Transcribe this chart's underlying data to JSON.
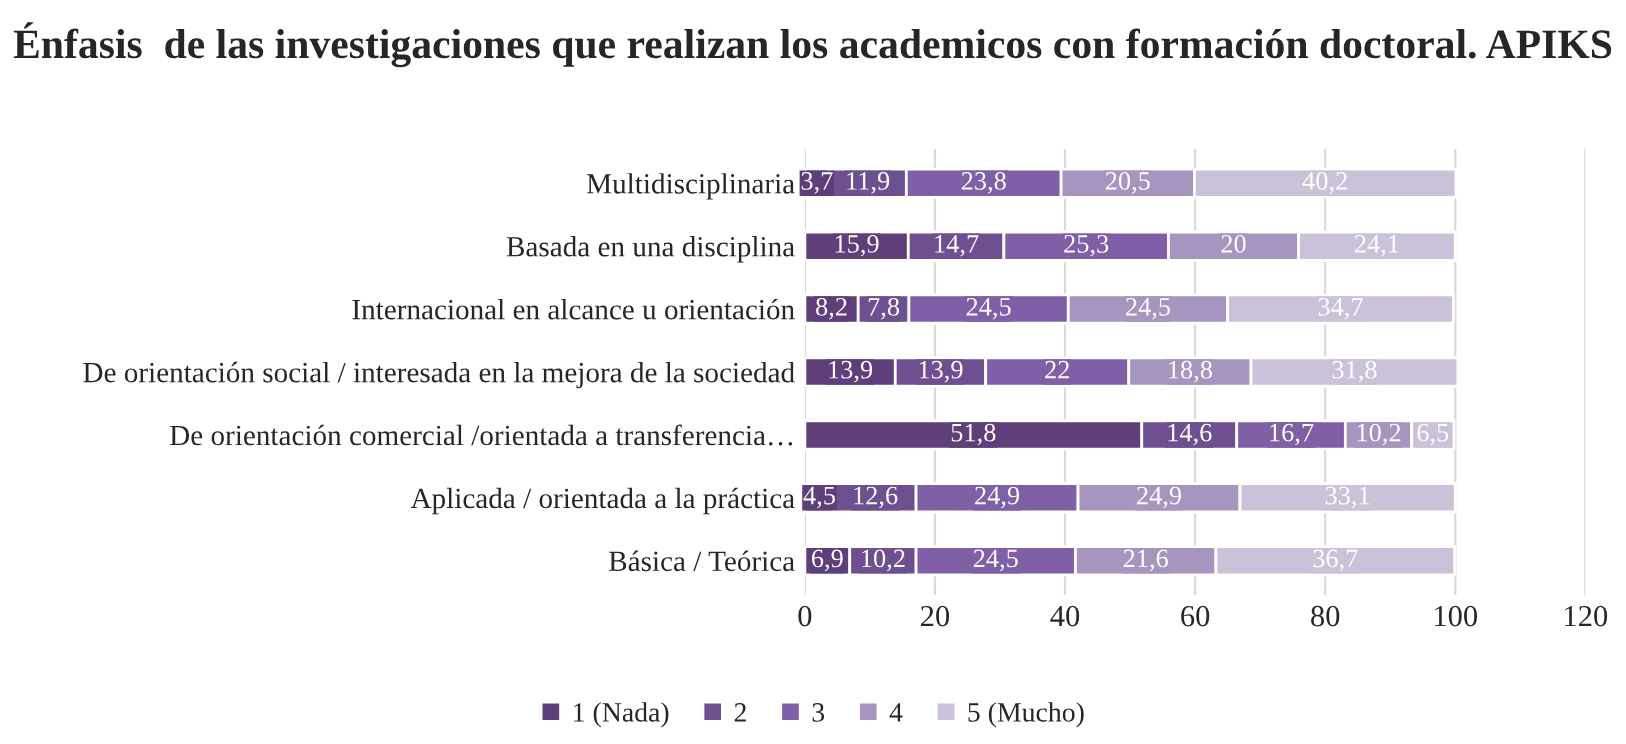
{
  "chart_data": {
    "type": "bar",
    "orientation": "horizontal",
    "stacked": true,
    "title": "Énfasis  de las investigaciones que realizan los academicos con formación doctoral. APIKS",
    "categories": [
      "Multidisciplinaria",
      "Basada en una disciplina",
      "Internacional en alcance u orientación",
      "De orientación social / interesada en la mejora de la sociedad",
      "De orientación comercial /orientada a transferencia…",
      "Aplicada / orientada a la práctica",
      "Básica / Teórica"
    ],
    "series": [
      {
        "name": "1 (Nada)",
        "color": "#5e3f7a",
        "values": [
          3.7,
          15.9,
          8.2,
          13.9,
          51.8,
          4.5,
          6.9
        ],
        "value_labels": [
          "3,7",
          "15,9",
          "8,2",
          "13,9",
          "51,8",
          "4,5",
          "6,9"
        ]
      },
      {
        "name": "2",
        "color": "#6e5090",
        "values": [
          11.9,
          14.7,
          7.8,
          13.9,
          14.6,
          12.6,
          10.2
        ],
        "value_labels": [
          "11,9",
          "14,7",
          "7,8",
          "13,9",
          "14,6",
          "12,6",
          "10,2"
        ]
      },
      {
        "name": "3",
        "color": "#7f5fa6",
        "values": [
          23.8,
          25.3,
          24.5,
          22,
          16.7,
          24.9,
          24.5
        ],
        "value_labels": [
          "23,8",
          "25,3",
          "24,5",
          "22",
          "16,7",
          "24,9",
          "24,5"
        ]
      },
      {
        "name": "4",
        "color": "#a696bf",
        "values": [
          20.5,
          20,
          24.5,
          18.8,
          10.2,
          24.9,
          21.6
        ],
        "value_labels": [
          "20,5",
          "20",
          "24,5",
          "18,8",
          "10,2",
          "24,9",
          "21,6"
        ]
      },
      {
        "name": "5 (Mucho)",
        "color": "#cbc2da",
        "values": [
          40.2,
          24.1,
          34.7,
          31.8,
          6.5,
          33.1,
          36.7
        ],
        "value_labels": [
          "40,2",
          "24,1",
          "34,7",
          "31,8",
          "6,5",
          "33,1",
          "36,7"
        ]
      }
    ],
    "xlim": [
      0,
      120
    ],
    "xticks": [
      0,
      20,
      40,
      60,
      80,
      100,
      120
    ],
    "grid": "x",
    "legend": "bottom"
  }
}
